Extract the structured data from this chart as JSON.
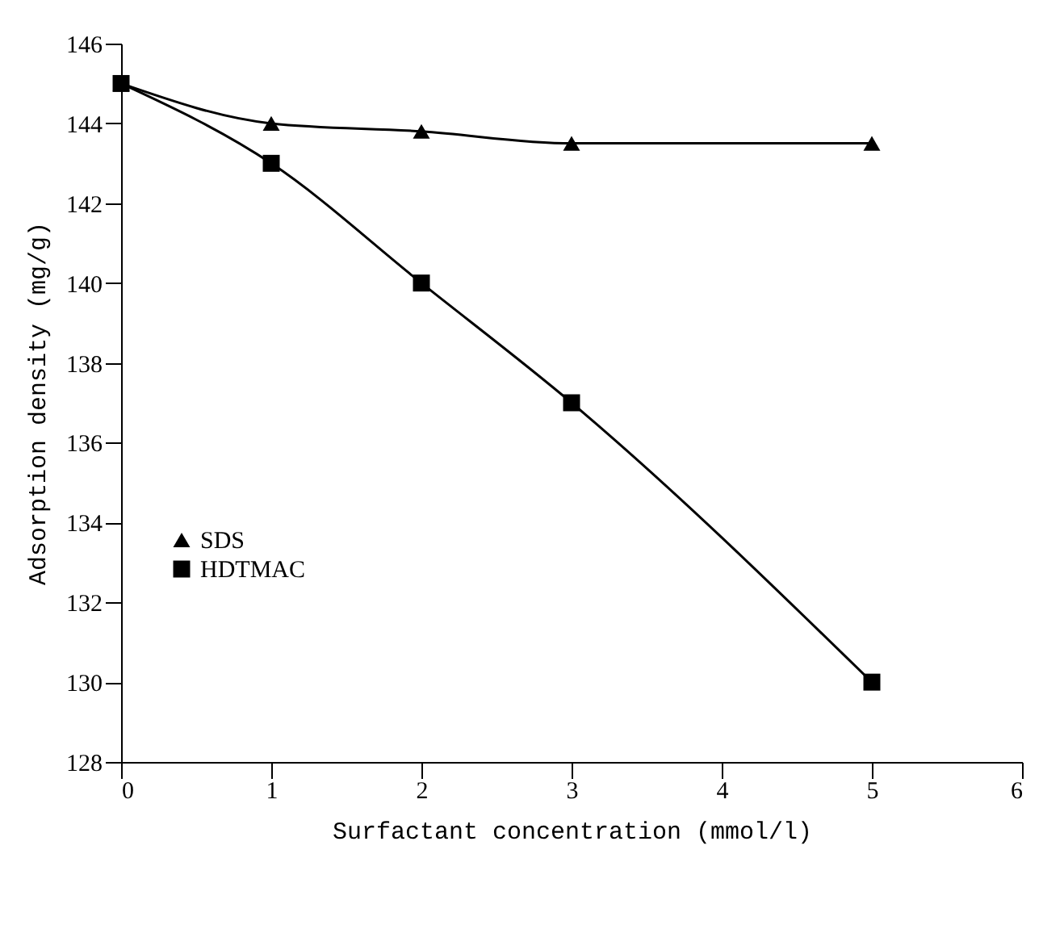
{
  "chart_data": {
    "type": "line",
    "xlabel": "Surfactant concentration (mmol/l)",
    "ylabel": "Adsorption density (mg/g)",
    "x": [
      0,
      1,
      2,
      3,
      5
    ],
    "series": [
      {
        "name": "SDS",
        "color": "#000000",
        "marker": "triangle",
        "values": [
          145,
          144,
          143.8,
          143.5,
          143.5
        ]
      },
      {
        "name": "HDTMAC",
        "color": "#000000",
        "marker": "square",
        "values": [
          145,
          143,
          140,
          137,
          130
        ]
      }
    ],
    "xlim": [
      0,
      6
    ],
    "xticks": [
      0,
      1,
      2,
      3,
      4,
      5,
      6
    ],
    "ylim": [
      128,
      146
    ],
    "yticks": [
      128,
      130,
      132,
      134,
      136,
      138,
      140,
      142,
      144,
      146
    ],
    "grid": false,
    "legend": "left"
  }
}
